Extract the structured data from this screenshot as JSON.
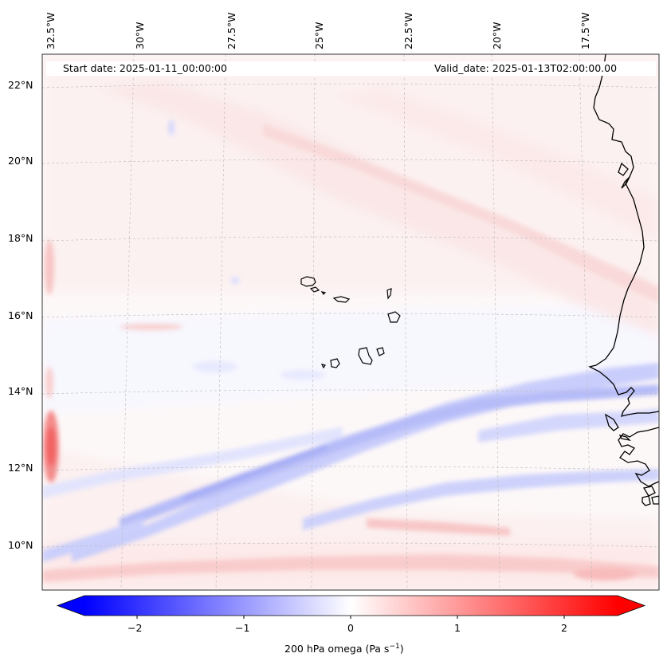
{
  "map": {
    "start_date": "Start date: 2025-01-11_00:00:00",
    "valid_date": "Valid_date: 2025-01-13T02:00:00.00",
    "lon_labels": [
      "32.5°W",
      "30°W",
      "27.5°W",
      "25°W",
      "22.5°W",
      "20°W",
      "17.5°W"
    ],
    "lat_labels": [
      "22°N",
      "20°N",
      "18°N",
      "16°N",
      "14°N",
      "12°N",
      "10°N"
    ]
  },
  "colorbar": {
    "ticks": [
      "−2",
      "−1",
      "0",
      "1",
      "2"
    ],
    "label_main": "200 hPa omega (Pa s",
    "label_sup": "−1",
    "label_close": ")",
    "colors": {
      "negative": "#0000ff",
      "zero": "#ffffff",
      "positive": "#ff0000"
    }
  }
}
